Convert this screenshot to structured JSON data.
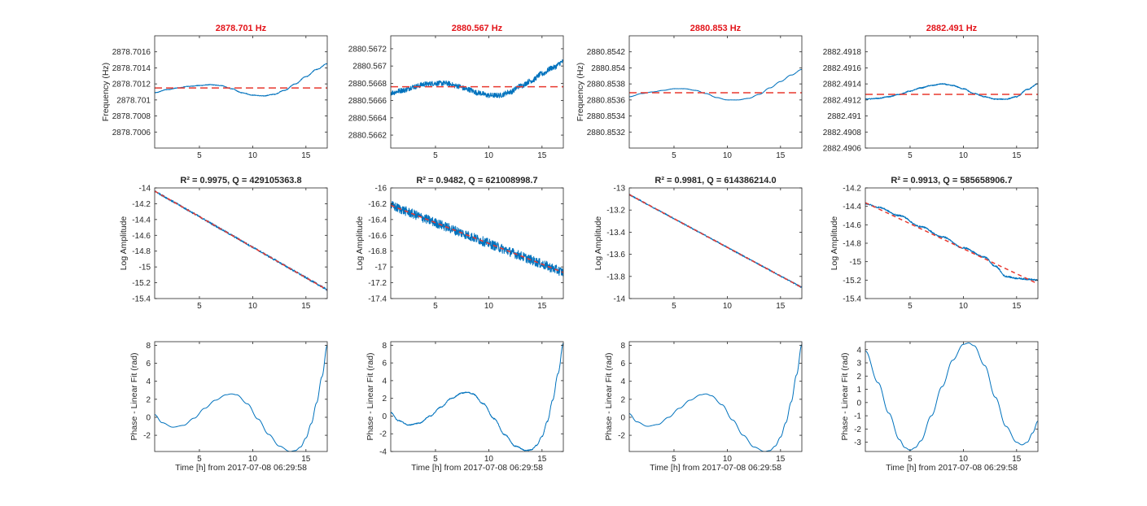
{
  "chart_data": {
    "type": "line",
    "colors": {
      "data": "#0072bd",
      "fit": "#e8382f",
      "title_highlight": "#e3141a"
    },
    "grid": false,
    "panels": [
      {
        "row": "frequency",
        "title": "2878.701 Hz",
        "xlabel": "",
        "ylabel": "Frequency (Hz)",
        "xlim": [
          0.8,
          17
        ],
        "ylim": [
          2878.7004,
          2878.7018
        ],
        "xticks": [
          5,
          10,
          15
        ],
        "yticks": [
          2878.7006,
          2878.7008,
          2878.701,
          2878.7012,
          2878.7014,
          2878.7016
        ],
        "ytick_labels": [
          "2878.7006",
          "2878.7008",
          "2878.701",
          "2878.7012",
          "2878.7014",
          "2878.7016"
        ],
        "series": [
          {
            "role": "data",
            "x": [
              0.8,
              2,
              3,
              4,
              5,
              6,
              7,
              8,
              9,
              10,
              11,
              12,
              13,
              14,
              15,
              16,
              17
            ],
            "y": [
              2878.70109,
              2878.70113,
              2878.70115,
              2878.70117,
              2878.70118,
              2878.70119,
              2878.70118,
              2878.70114,
              2878.70109,
              2878.70106,
              2878.70105,
              2878.70107,
              2878.70112,
              2878.7012,
              2878.70129,
              2878.70138,
              2878.70145
            ],
            "noise": 4e-06
          },
          {
            "role": "fit",
            "style": "dashed",
            "x": [
              0.8,
              17
            ],
            "y": [
              2878.70115,
              2878.70115
            ]
          }
        ]
      },
      {
        "row": "frequency",
        "title": "2880.567 Hz",
        "xlabel": "",
        "ylabel": "",
        "xlim": [
          0.8,
          17
        ],
        "ylim": [
          2880.56605,
          2880.56735
        ],
        "xticks": [
          5,
          10,
          15
        ],
        "yticks": [
          2880.5662,
          2880.5664,
          2880.5666,
          2880.5668,
          2880.567,
          2880.5672
        ],
        "ytick_labels": [
          "2880.5662",
          "2880.5664",
          "2880.5666",
          "2880.5668",
          "2880.567",
          "2880.5672"
        ],
        "series": [
          {
            "role": "data",
            "x": [
              0.8,
              2,
              3,
              4,
              5,
              6,
              7,
              8,
              9,
              10,
              11,
              12,
              13,
              14,
              15,
              16,
              17
            ],
            "y": [
              2880.56669,
              2880.56672,
              2880.56676,
              2880.56679,
              2880.5668,
              2880.5668,
              2880.56677,
              2880.56673,
              2880.56669,
              2880.56666,
              2880.56666,
              2880.5667,
              2880.56677,
              2880.56683,
              2880.56691,
              2880.56698,
              2880.56705
            ],
            "noise": 3e-05
          },
          {
            "role": "fit",
            "style": "dashed",
            "x": [
              0.8,
              17
            ],
            "y": [
              2880.56676,
              2880.56676
            ]
          }
        ]
      },
      {
        "row": "frequency",
        "title": "2880.853 Hz",
        "xlabel": "",
        "ylabel": "Frequency (Hz)",
        "xlim": [
          0.8,
          17
        ],
        "ylim": [
          2880.853,
          2880.8544
        ],
        "xticks": [
          5,
          10,
          15
        ],
        "yticks": [
          2880.8532,
          2880.8534,
          2880.8536,
          2880.8538,
          2880.854,
          2880.8542
        ],
        "ytick_labels": [
          "2880.8532",
          "2880.8534",
          "2880.8536",
          "2880.8538",
          "2880.854",
          "2880.8542"
        ],
        "series": [
          {
            "role": "data",
            "x": [
              0.8,
              2,
              3,
              4,
              5,
              6,
              7,
              8,
              9,
              10,
              11,
              12,
              13,
              14,
              15,
              16,
              17
            ],
            "y": [
              2880.85364,
              2880.85368,
              2880.8537,
              2880.85372,
              2880.85374,
              2880.85374,
              2880.85372,
              2880.85368,
              2880.85363,
              2880.8536,
              2880.8536,
              2880.85362,
              2880.85367,
              2880.85375,
              2880.85383,
              2880.85391,
              2880.85398
            ],
            "noise": 1.5e-06
          },
          {
            "role": "fit",
            "style": "dashed",
            "x": [
              0.8,
              17
            ],
            "y": [
              2880.85369,
              2880.85369
            ]
          }
        ]
      },
      {
        "row": "frequency",
        "title": "2882.491 Hz",
        "xlabel": "",
        "ylabel": "",
        "xlim": [
          0.8,
          17
        ],
        "ylim": [
          2882.4906,
          2882.492
        ],
        "xticks": [
          5,
          10,
          15
        ],
        "yticks": [
          2882.4906,
          2882.4908,
          2882.491,
          2882.4912,
          2882.4914,
          2882.4916,
          2882.4918
        ],
        "ytick_labels": [
          "2882.4906",
          "2882.4908",
          "2882.491",
          "2882.4912",
          "2882.4914",
          "2882.4916",
          "2882.4918"
        ],
        "series": [
          {
            "role": "data",
            "x": [
              0.8,
              2,
              3,
              4,
              5,
              6,
              7,
              8,
              9,
              10,
              11,
              12,
              13,
              14,
              15,
              16,
              17
            ],
            "y": [
              2882.49121,
              2882.49122,
              2882.49124,
              2882.49127,
              2882.49131,
              2882.49135,
              2882.49138,
              2882.4914,
              2882.49138,
              2882.49134,
              2882.49128,
              2882.49124,
              2882.49121,
              2882.49121,
              2882.49124,
              2882.49133,
              2882.4914
            ],
            "noise": 6e-06
          },
          {
            "role": "fit",
            "style": "dashed",
            "x": [
              0.8,
              17
            ],
            "y": [
              2882.49127,
              2882.49127
            ]
          }
        ]
      },
      {
        "row": "amplitude",
        "title": "R² = 0.9975, Q = 429105363.8",
        "xlabel": "",
        "ylabel": "Log Amplitude",
        "xlim": [
          0.8,
          17
        ],
        "ylim": [
          -15.4,
          -14
        ],
        "xticks": [
          5,
          10,
          15
        ],
        "yticks": [
          -15.4,
          -15.2,
          -15,
          -14.8,
          -14.6,
          -14.4,
          -14.2,
          -14
        ],
        "ytick_labels": [
          "-15.4",
          "-15.2",
          "-15",
          "-14.8",
          "-14.6",
          "-14.4",
          "-14.2",
          "-14"
        ],
        "series": [
          {
            "role": "data",
            "x": [
              0.8,
              17
            ],
            "y": [
              -14.04,
              -15.29
            ],
            "noise": 0.012
          },
          {
            "role": "fit",
            "style": "dashed",
            "x": [
              0.8,
              17
            ],
            "y": [
              -14.04,
              -15.29
            ]
          }
        ]
      },
      {
        "row": "amplitude",
        "title": "R² = 0.9482, Q = 621008998.7",
        "xlabel": "",
        "ylabel": "Log Amplitude",
        "xlim": [
          0.8,
          17
        ],
        "ylim": [
          -17.4,
          -16
        ],
        "xticks": [
          5,
          10,
          15
        ],
        "yticks": [
          -17.4,
          -17.2,
          -17,
          -16.8,
          -16.6,
          -16.4,
          -16.2,
          -16
        ],
        "ytick_labels": [
          "-17.4",
          "-17.2",
          "-17",
          "-16.8",
          "-16.6",
          "-16.4",
          "-16.2",
          "-16"
        ],
        "series": [
          {
            "role": "data",
            "x": [
              0.8,
              17
            ],
            "y": [
              -16.22,
              -17.07
            ],
            "noise": 0.06
          },
          {
            "role": "fit",
            "style": "dashed",
            "x": [
              0.8,
              17
            ],
            "y": [
              -16.22,
              -17.07
            ]
          }
        ]
      },
      {
        "row": "amplitude",
        "title": "R² = 0.9981, Q = 614386214.0",
        "xlabel": "",
        "ylabel": "Log Amplitude",
        "xlim": [
          0.8,
          17
        ],
        "ylim": [
          -14,
          -13
        ],
        "xticks": [
          5,
          10,
          15
        ],
        "yticks": [
          -14,
          -13.8,
          -13.6,
          -13.4,
          -13.2,
          -13
        ],
        "ytick_labels": [
          "-14",
          "-13.8",
          "-13.6",
          "-13.4",
          "-13.2",
          "-13"
        ],
        "series": [
          {
            "role": "data",
            "x": [
              0.8,
              17
            ],
            "y": [
              -13.06,
              -13.9
            ],
            "noise": 0.006
          },
          {
            "role": "fit",
            "style": "dashed",
            "x": [
              0.8,
              17
            ],
            "y": [
              -13.06,
              -13.9
            ]
          }
        ]
      },
      {
        "row": "amplitude",
        "title": "R² = 0.9913, Q = 585658906.7",
        "xlabel": "",
        "ylabel": "Log Amplitude",
        "xlim": [
          0.8,
          17
        ],
        "ylim": [
          -15.4,
          -14.2
        ],
        "xticks": [
          5,
          10,
          15
        ],
        "yticks": [
          -15.4,
          -15.2,
          -15,
          -14.8,
          -14.6,
          -14.4,
          -14.2
        ],
        "ytick_labels": [
          "-15.4",
          "-15.2",
          "-15",
          "-14.8",
          "-14.6",
          "-14.4",
          "-14.2"
        ],
        "series": [
          {
            "role": "data",
            "x": [
              0.8,
              2,
              4,
              6,
              8,
              10,
              12,
              13,
              14,
              15,
              16,
              17
            ],
            "y": [
              -14.37,
              -14.41,
              -14.5,
              -14.62,
              -14.73,
              -14.85,
              -14.95,
              -15.05,
              -15.16,
              -15.18,
              -15.19,
              -15.2
            ],
            "noise": 0.008
          },
          {
            "role": "fit",
            "style": "dashed",
            "x": [
              0.8,
              17
            ],
            "y": [
              -14.36,
              -15.24
            ]
          }
        ]
      },
      {
        "row": "phase",
        "title": "",
        "xlabel": "Time [h] from 2017-07-08 06:29:58",
        "ylabel": "Phase - Linear Fit (rad)",
        "xlim": [
          0.8,
          17
        ],
        "ylim": [
          -3.8,
          8.4
        ],
        "xticks": [
          5,
          10,
          15
        ],
        "yticks": [
          -2,
          0,
          2,
          4,
          6,
          8
        ],
        "ytick_labels": [
          "-2",
          "0",
          "2",
          "4",
          "6",
          "8"
        ],
        "series": [
          {
            "role": "data",
            "x": [
              0.8,
              1.5,
              2.5,
              3.5,
              4.5,
              5.5,
              6.5,
              7.5,
              8,
              8.5,
              9.5,
              10.5,
              11.5,
              12.5,
              13.5,
              14,
              14.5,
              15,
              15.5,
              16,
              16.5,
              17
            ],
            "y": [
              0.3,
              -0.6,
              -1.1,
              -0.9,
              -0.1,
              1.0,
              1.9,
              2.5,
              2.6,
              2.5,
              1.5,
              -0.2,
              -1.9,
              -3.2,
              -3.8,
              -3.7,
              -3.3,
              -2.3,
              -0.7,
              1.6,
              4.5,
              8.0
            ],
            "noise": 0
          }
        ]
      },
      {
        "row": "phase",
        "title": "",
        "xlabel": "Time [h] from 2017-07-08 06:29:58",
        "ylabel": "Phase - Linear Fit (rad)",
        "xlim": [
          0.8,
          17
        ],
        "ylim": [
          -4,
          8.4
        ],
        "xticks": [
          5,
          10,
          15
        ],
        "yticks": [
          -4,
          -2,
          0,
          2,
          4,
          6,
          8
        ],
        "ytick_labels": [
          "-4",
          "-2",
          "0",
          "2",
          "4",
          "6",
          "8"
        ],
        "series": [
          {
            "role": "data",
            "x": [
              0.8,
              1.5,
              2.5,
              3.5,
              4.5,
              5.5,
              6.5,
              7.5,
              8,
              8.5,
              9.5,
              10.5,
              11.5,
              12.5,
              13.5,
              14,
              14.5,
              15,
              15.5,
              16,
              16.5,
              17
            ],
            "y": [
              0.4,
              -0.5,
              -1.0,
              -0.8,
              0.0,
              1.0,
              2.0,
              2.6,
              2.7,
              2.5,
              1.4,
              -0.3,
              -2.1,
              -3.4,
              -3.9,
              -3.8,
              -3.3,
              -2.3,
              -0.6,
              1.8,
              4.8,
              8.2
            ],
            "noise": 0.05
          }
        ]
      },
      {
        "row": "phase",
        "title": "",
        "xlabel": "Time [h] from 2017-07-08 06:29:58",
        "ylabel": "Phase - Linear Fit (rad)",
        "xlim": [
          0.8,
          17
        ],
        "ylim": [
          -3.8,
          8.4
        ],
        "xticks": [
          5,
          10,
          15
        ],
        "yticks": [
          -2,
          0,
          2,
          4,
          6,
          8
        ],
        "ytick_labels": [
          "-2",
          "0",
          "2",
          "4",
          "6",
          "8"
        ],
        "series": [
          {
            "role": "data",
            "x": [
              0.8,
              1.5,
              2.5,
              3.5,
              4.5,
              5.5,
              6.5,
              7.5,
              8,
              8.5,
              9.5,
              10.5,
              11.5,
              12.5,
              13.5,
              14,
              14.5,
              15,
              15.5,
              16,
              16.5,
              17
            ],
            "y": [
              0.4,
              -0.5,
              -1.0,
              -0.8,
              0.0,
              1.0,
              1.9,
              2.5,
              2.6,
              2.4,
              1.4,
              -0.3,
              -2.0,
              -3.3,
              -3.8,
              -3.7,
              -3.2,
              -2.2,
              -0.6,
              1.7,
              4.7,
              8.1
            ],
            "noise": 0
          }
        ]
      },
      {
        "row": "phase",
        "title": "",
        "xlabel": "Time [h] from 2017-07-08 06:29:58",
        "ylabel": "Phase - Linear Fit (rad)",
        "xlim": [
          0.8,
          17
        ],
        "ylim": [
          -3.7,
          4.6
        ],
        "xticks": [
          5,
          10,
          15
        ],
        "yticks": [
          -3,
          -2,
          -1,
          0,
          1,
          2,
          3,
          4
        ],
        "ytick_labels": [
          "-3",
          "-2",
          "-1",
          "0",
          "1",
          "2",
          "3",
          "4"
        ],
        "series": [
          {
            "role": "data",
            "x": [
              0.8,
              2,
              3,
              4,
              4.5,
              5,
              5.5,
              6,
              7,
              8,
              9,
              10,
              10.5,
              11,
              12,
              13,
              14,
              15,
              15.5,
              16,
              16.5,
              17
            ],
            "y": [
              3.9,
              1.5,
              -0.8,
              -2.8,
              -3.4,
              -3.6,
              -3.4,
              -2.9,
              -1.0,
              1.2,
              3.2,
              4.4,
              4.5,
              4.3,
              2.8,
              0.4,
              -1.8,
              -3.0,
              -3.2,
              -3.0,
              -2.3,
              -1.4
            ],
            "noise": 0
          }
        ]
      }
    ]
  }
}
